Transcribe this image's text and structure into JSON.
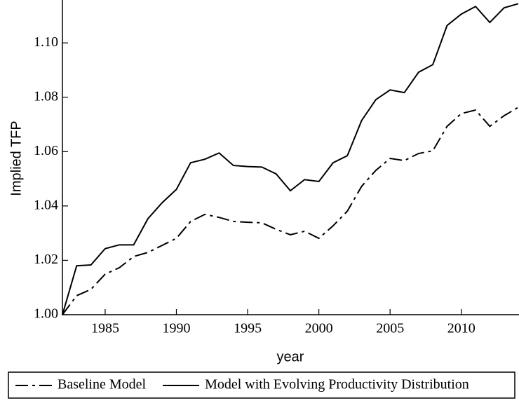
{
  "chart_data": {
    "type": "line",
    "ylabel": "Implied TFP",
    "xlabel": "year",
    "x": [
      1982,
      1983,
      1984,
      1985,
      1986,
      1987,
      1988,
      1989,
      1990,
      1991,
      1992,
      1993,
      1994,
      1995,
      1996,
      1997,
      1998,
      1999,
      2000,
      2001,
      2002,
      2003,
      2004,
      2005,
      2006,
      2007,
      2008,
      2009,
      2010,
      2011,
      2012,
      2013,
      2014
    ],
    "series": [
      {
        "name": "Baseline Model",
        "color": "#000000",
        "linestyle": "dashdot",
        "values": [
          1.0,
          1.007,
          1.0093,
          1.0149,
          1.0173,
          1.0214,
          1.0229,
          1.0255,
          1.0281,
          1.0343,
          1.0369,
          1.0358,
          1.0343,
          1.034,
          1.0338,
          1.0314,
          1.0294,
          1.0307,
          1.0281,
          1.0327,
          1.0381,
          1.0472,
          1.0531,
          1.0575,
          1.0567,
          1.0593,
          1.0603,
          1.0693,
          1.074,
          1.0753,
          1.0693,
          1.0732,
          1.0763
        ]
      },
      {
        "name": "Model with Evolving Productivity Distribution",
        "color": "#000000",
        "linestyle": "solid",
        "values": [
          1.0,
          1.018,
          1.0183,
          1.0243,
          1.0257,
          1.0257,
          1.0353,
          1.0412,
          1.0461,
          1.0559,
          1.0572,
          1.0595,
          1.0549,
          1.0545,
          1.0543,
          1.0518,
          1.0456,
          1.0497,
          1.049,
          1.0559,
          1.0585,
          1.0714,
          1.0791,
          1.0827,
          1.0817,
          1.0892,
          1.092,
          1.1064,
          1.1106,
          1.1134,
          1.1075,
          1.1129,
          1.1144
        ]
      }
    ],
    "xlim": [
      1982,
      2014
    ],
    "xticks": [
      1985,
      1990,
      1995,
      2000,
      2005,
      2010
    ],
    "ylim": [
      1.0,
      1.115
    ],
    "yticks": [
      {
        "value": 1.0,
        "label": "1.00"
      },
      1.02,
      1.04,
      1.06,
      1.08,
      {
        "value": 1.1,
        "label": "1.10"
      }
    ],
    "legend": "bottom"
  }
}
